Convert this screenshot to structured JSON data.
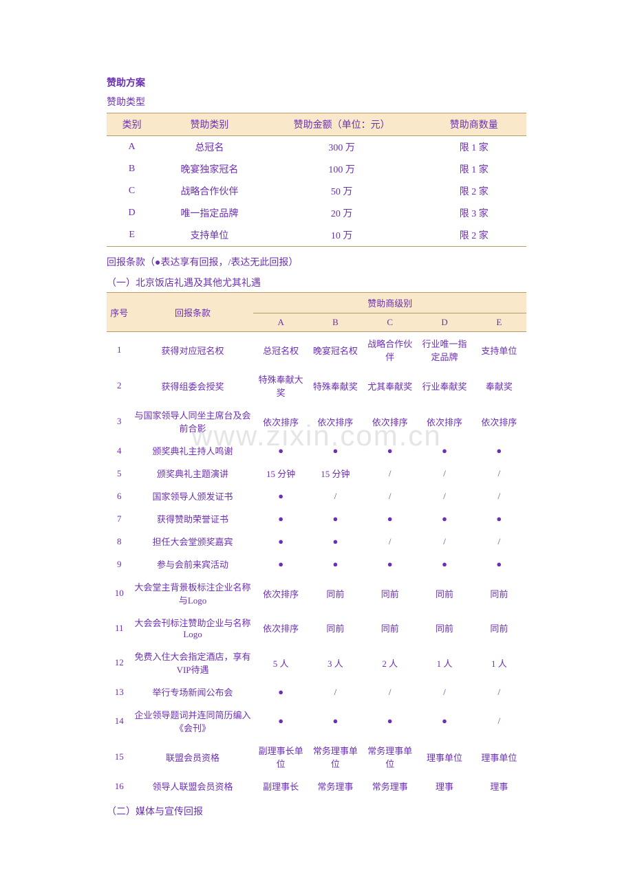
{
  "title": "赞助方案",
  "typeLabel": "赞助类型",
  "watermark": "www.zixin.com.cn",
  "table1": {
    "headers": [
      "类别",
      "赞助类别",
      "赞助金额（单位：元）",
      "赞助商数量"
    ],
    "rows": [
      [
        "A",
        "总冠名",
        "300 万",
        "限 1 家"
      ],
      [
        "B",
        "晚宴独家冠名",
        "100 万",
        "限 1 家"
      ],
      [
        "C",
        "战略合作伙伴",
        "50 万",
        "限 2 家"
      ],
      [
        "D",
        "唯一指定品牌",
        "20 万",
        "限 3 家"
      ],
      [
        "E",
        "支持单位",
        "10 万",
        "限 2 家"
      ]
    ],
    "colWidths": [
      "12%",
      "25%",
      "38%",
      "25%"
    ]
  },
  "returnLabel": "回报条款（●表达享有回报，/表达无此回报）",
  "section1Label": "（一）北京饭店礼遇及其他尤其礼遇",
  "table2": {
    "header": {
      "seq": "序号",
      "ret": "回报条款",
      "lvl": "赞助商级别",
      "sub": [
        "A",
        "B",
        "C",
        "D",
        "E"
      ]
    },
    "colWidths": [
      "6%",
      "29%",
      "13%",
      "13%",
      "13%",
      "13%",
      "13%"
    ],
    "rows": [
      {
        "n": "1",
        "t": "获得对应冠名权",
        "v": [
          "总冠名权",
          "晚宴冠名权",
          "战略合作伙伴",
          "行业唯一指定品牌",
          "支持单位"
        ]
      },
      {
        "n": "2",
        "t": "获得组委会授奖",
        "v": [
          "特殊奉献大奖",
          "特殊奉献奖",
          "尤其奉献奖",
          "行业奉献奖",
          "奉献奖"
        ]
      },
      {
        "n": "3",
        "t": "与国家领导人同坐主席台及会前合影",
        "v": [
          "依次排序",
          "依次排序",
          "依次排序",
          "依次排序",
          "依次排序"
        ]
      },
      {
        "n": "4",
        "t": "颁奖典礼主持人鸣谢",
        "v": [
          "●",
          "●",
          "●",
          "●",
          "●"
        ]
      },
      {
        "n": "5",
        "t": "颁奖典礼主题演讲",
        "v": [
          "15 分钟",
          "15 分钟",
          "/",
          "/",
          "/"
        ]
      },
      {
        "n": "6",
        "t": "国家领导人颁发证书",
        "v": [
          "●",
          "/",
          "/",
          "/",
          "/"
        ]
      },
      {
        "n": "7",
        "t": "获得赞助荣誉证书",
        "v": [
          "●",
          "●",
          "●",
          "●",
          "●"
        ]
      },
      {
        "n": "8",
        "t": "担任大会堂颁奖嘉宾",
        "v": [
          "●",
          "●",
          "/",
          "/",
          "/"
        ]
      },
      {
        "n": "9",
        "t": "参与会前来宾活动",
        "v": [
          "●",
          "●",
          "●",
          "●",
          "●"
        ]
      },
      {
        "n": "10",
        "t": "大会堂主背景板标注企业名称与Logo",
        "v": [
          "依次排序",
          "同前",
          "同前",
          "同前",
          "同前"
        ]
      },
      {
        "n": "11",
        "t": "大会会刊标注赞助企业与名称Logo",
        "v": [
          "依次排序",
          "同前",
          "同前",
          "同前",
          "同前"
        ]
      },
      {
        "n": "12",
        "t": "免费入住大会指定酒店，享有 VIP待遇",
        "v": [
          "5 人",
          "3 人",
          "2 人",
          "1 人",
          "1 人"
        ]
      },
      {
        "n": "13",
        "t": "举行专场新闻公布会",
        "v": [
          "●",
          "/",
          "/",
          "/",
          "/"
        ]
      },
      {
        "n": "14",
        "t": "企业领导题词并连同简历编入《会刊》",
        "v": [
          "●",
          "●",
          "●",
          "●",
          "/"
        ]
      },
      {
        "n": "15",
        "t": "联盟会员资格",
        "v": [
          "副理事长单位",
          "常务理事单位",
          "常务理事单位",
          "理事单位",
          "理事单位"
        ]
      },
      {
        "n": "16",
        "t": "领导人联盟会员资格",
        "v": [
          "副理事长",
          "常务理事",
          "常务理事",
          "理事",
          "理事"
        ]
      }
    ]
  },
  "section2Label": "（二）媒体与宣传回报"
}
